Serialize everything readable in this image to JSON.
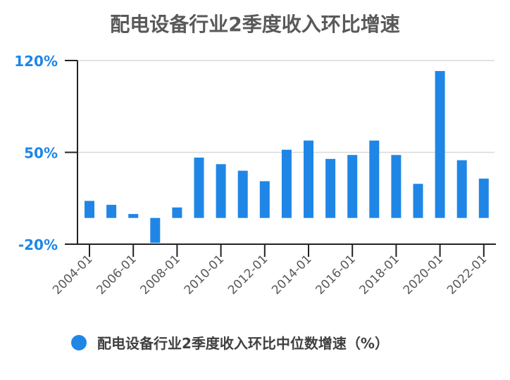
{
  "chart_data": {
    "type": "bar",
    "title": "配电设备行业2季度收入环比增速",
    "categories": [
      "2004-01",
      "2005-01",
      "2006-01",
      "2007-01",
      "2008-01",
      "2009-01",
      "2010-01",
      "2011-01",
      "2012-01",
      "2013-01",
      "2014-01",
      "2015-01",
      "2016-01",
      "2017-01",
      "2018-01",
      "2019-01",
      "2020-01",
      "2021-01",
      "2022-01"
    ],
    "x_tick_labels": [
      "2004-01",
      "2006-01",
      "2008-01",
      "2010-01",
      "2012-01",
      "2014-01",
      "2016-01",
      "2018-01",
      "2020-01",
      "2022-01"
    ],
    "series": [
      {
        "name": "配电设备行业2季度收入环比中位数增速（%）",
        "values": [
          13,
          10,
          3,
          -19,
          8,
          46,
          41,
          36,
          28,
          52,
          59,
          45,
          48,
          59,
          48,
          26,
          112,
          44,
          30
        ]
      }
    ],
    "ylim": [
      -20,
      120
    ],
    "y_ticks": [
      -20,
      50,
      120
    ],
    "y_tick_labels": [
      "-20%",
      "50%",
      "120%"
    ],
    "xlabel": "",
    "ylabel": "",
    "grid": true,
    "legend_position": "bottom",
    "colors": {
      "bar": "#1f86e6",
      "tick_label": "#1f86e6"
    }
  }
}
